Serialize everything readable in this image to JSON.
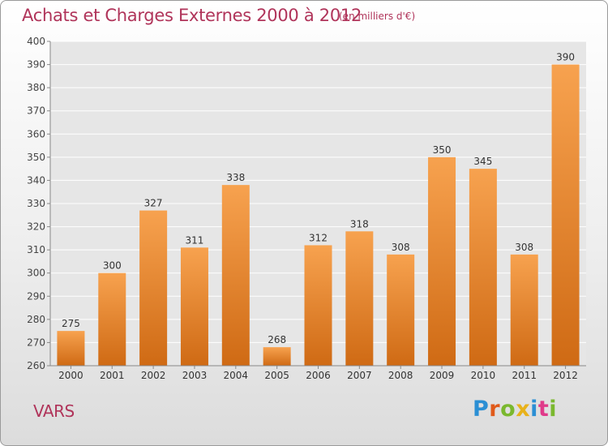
{
  "chart_data": {
    "type": "bar",
    "title": "Achats et Charges Externes 2000 à 2012",
    "subtitle": "(en milliers d'€)",
    "xlabel": "",
    "ylabel": "",
    "categories": [
      "2000",
      "2001",
      "2002",
      "2003",
      "2004",
      "2005",
      "2006",
      "2007",
      "2008",
      "2009",
      "2010",
      "2011",
      "2012"
    ],
    "values": [
      275,
      300,
      327,
      311,
      338,
      268,
      312,
      318,
      308,
      350,
      345,
      308,
      390
    ],
    "ylim": [
      260,
      400
    ],
    "yticks": [
      "260",
      "270",
      "280",
      "290",
      "300",
      "310",
      "320",
      "330",
      "340",
      "350",
      "360",
      "370",
      "380",
      "390",
      "400"
    ],
    "grid": true,
    "legend": "none",
    "bar_color": "#e8822a"
  },
  "commune": "VARS",
  "logo": {
    "text": "Proxiti",
    "colors": [
      "#2b8fd4",
      "#e05a1a",
      "#7ab82e",
      "#e8b21a",
      "#2b8fd4",
      "#e03a8a",
      "#7ab82e"
    ]
  }
}
